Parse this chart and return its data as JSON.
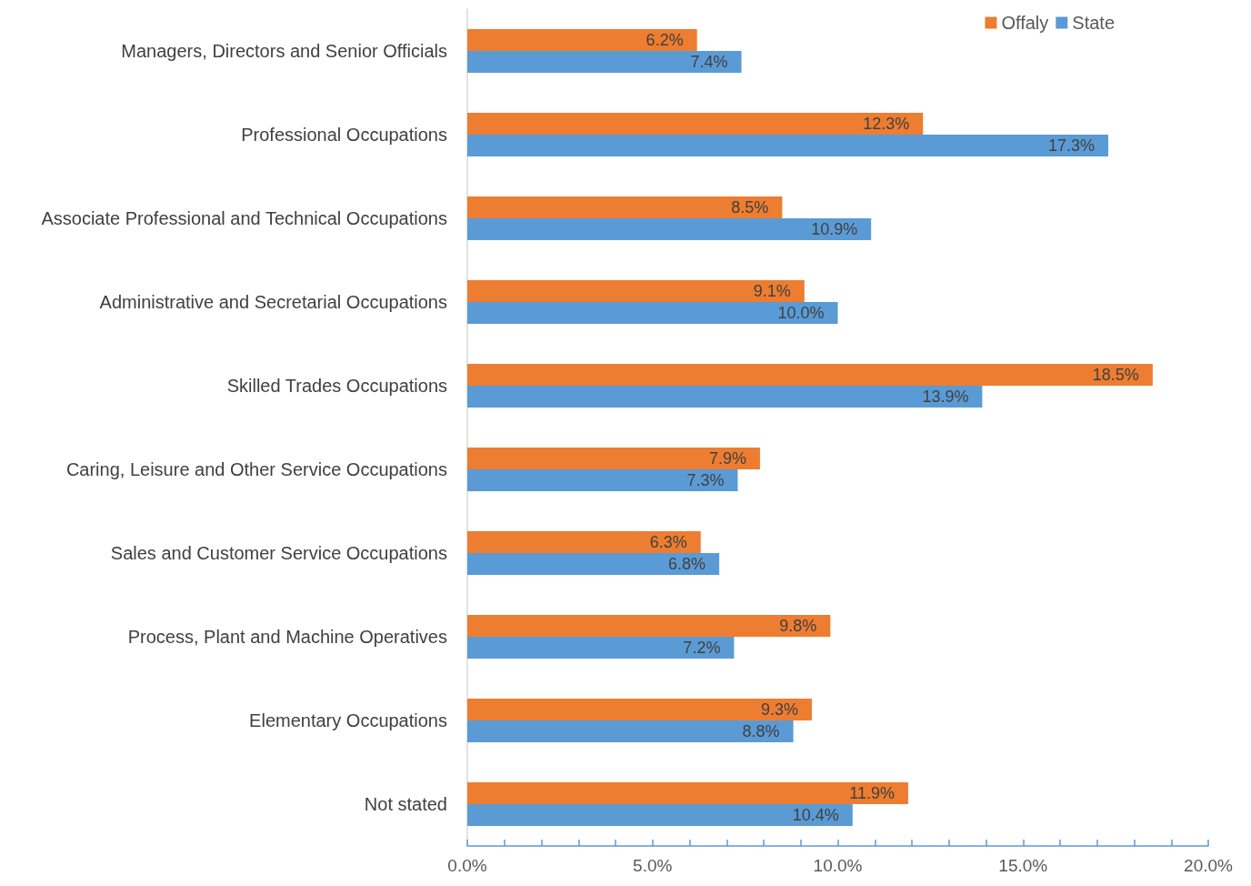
{
  "chart_data": {
    "type": "bar",
    "orientation": "horizontal",
    "categories": [
      "Managers, Directors and Senior Officials",
      "Professional Occupations",
      "Associate Professional and Technical Occupations",
      "Administrative and Secretarial Occupations",
      "Skilled Trades Occupations",
      "Caring, Leisure and Other Service Occupations",
      "Sales and Customer Service Occupations",
      "Process, Plant and Machine Operatives",
      "Elementary Occupations",
      "Not stated"
    ],
    "series": [
      {
        "name": "Offaly",
        "color": "#ed7d31",
        "values": [
          6.2,
          12.3,
          8.5,
          9.1,
          18.5,
          7.9,
          6.3,
          9.8,
          9.3,
          11.9
        ],
        "value_labels": [
          "6.2%",
          "12.3%",
          "8.5%",
          "9.1%",
          "18.5%",
          "7.9%",
          "6.3%",
          "9.8%",
          "9.3%",
          "11.9%"
        ]
      },
      {
        "name": "State",
        "color": "#5b9bd5",
        "values": [
          7.4,
          17.3,
          10.9,
          10.0,
          13.9,
          7.3,
          6.8,
          7.2,
          8.8,
          10.4
        ],
        "value_labels": [
          "7.4%",
          "17.3%",
          "10.9%",
          "10.0%",
          "13.9%",
          "7.3%",
          "6.8%",
          "7.2%",
          "8.8%",
          "10.4%"
        ]
      }
    ],
    "xlim": [
      0,
      20
    ],
    "xticks": [
      {
        "value": 0,
        "label": "0.0%"
      },
      {
        "value": 1,
        "label": null
      },
      {
        "value": 2,
        "label": null
      },
      {
        "value": 3,
        "label": null
      },
      {
        "value": 4,
        "label": null
      },
      {
        "value": 5,
        "label": "5.0%"
      },
      {
        "value": 6,
        "label": null
      },
      {
        "value": 7,
        "label": null
      },
      {
        "value": 8,
        "label": null
      },
      {
        "value": 9,
        "label": null
      },
      {
        "value": 10,
        "label": "10.0%"
      },
      {
        "value": 11,
        "label": null
      },
      {
        "value": 12,
        "label": null
      },
      {
        "value": 13,
        "label": null
      },
      {
        "value": 14,
        "label": null
      },
      {
        "value": 15,
        "label": "15.0%"
      },
      {
        "value": 16,
        "label": null
      },
      {
        "value": 17,
        "label": null
      },
      {
        "value": 18,
        "label": null
      },
      {
        "value": 19,
        "label": null
      },
      {
        "value": 20,
        "label": "20.0%"
      }
    ],
    "grid": false,
    "legend": "top right"
  }
}
